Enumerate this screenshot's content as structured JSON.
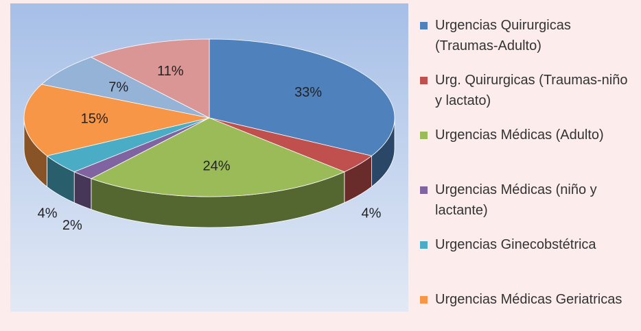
{
  "chart_data": {
    "type": "pie3d",
    "categories": [
      "Urgencias Quirurgicas (Traumas-Adulto)",
      "Urg. Quirurgicas (Traumas-niño y lactato)",
      "Urgencias Médicas (Adulto)",
      "Urgencias Médicas (niño y lactante)",
      "Urgencias Ginecobstétrica",
      "Urgencias Médicas Geriatricas",
      null,
      null
    ],
    "values": [
      33,
      4,
      24,
      2,
      4,
      15,
      7,
      11
    ],
    "value_labels": [
      "33%",
      "4%",
      "24%",
      "2%",
      "4%",
      "15%",
      "7%",
      "11%"
    ],
    "colors": [
      "#4f81bd",
      "#c0504d",
      "#9bbb59",
      "#8064a2",
      "#4bacc6",
      "#f79646",
      "#95b3d7",
      "#d99694"
    ],
    "legend": "right"
  }
}
